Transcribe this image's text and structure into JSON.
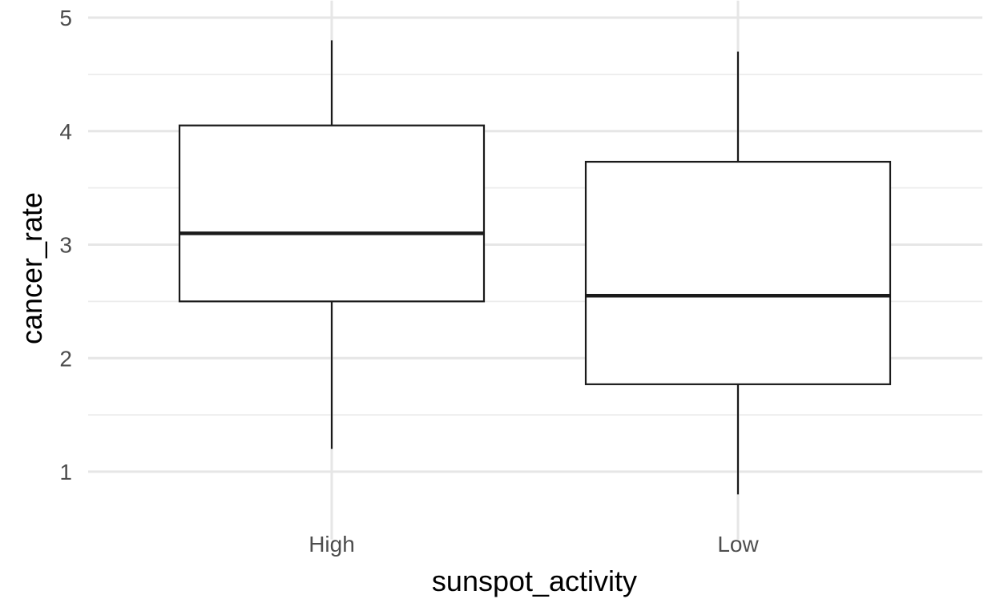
{
  "chart_data": {
    "type": "boxplot",
    "xlabel": "sunspot_activity",
    "ylabel": "cancer_rate",
    "ylim": [
      0.6,
      5.15
    ],
    "yticks": [
      1,
      2,
      3,
      4,
      5
    ],
    "categories": [
      "High",
      "Low"
    ],
    "boxes": [
      {
        "category": "High",
        "min": 1.2,
        "q1": 2.5,
        "median": 3.1,
        "q3": 4.05,
        "max": 4.8
      },
      {
        "category": "Low",
        "min": 0.8,
        "q1": 1.77,
        "median": 2.55,
        "q3": 3.73,
        "max": 4.7
      }
    ],
    "grid": true,
    "colors": {
      "box_fill": "#ffffff",
      "box_stroke": "#1a1a1a",
      "grid": "#ebebeb"
    }
  }
}
